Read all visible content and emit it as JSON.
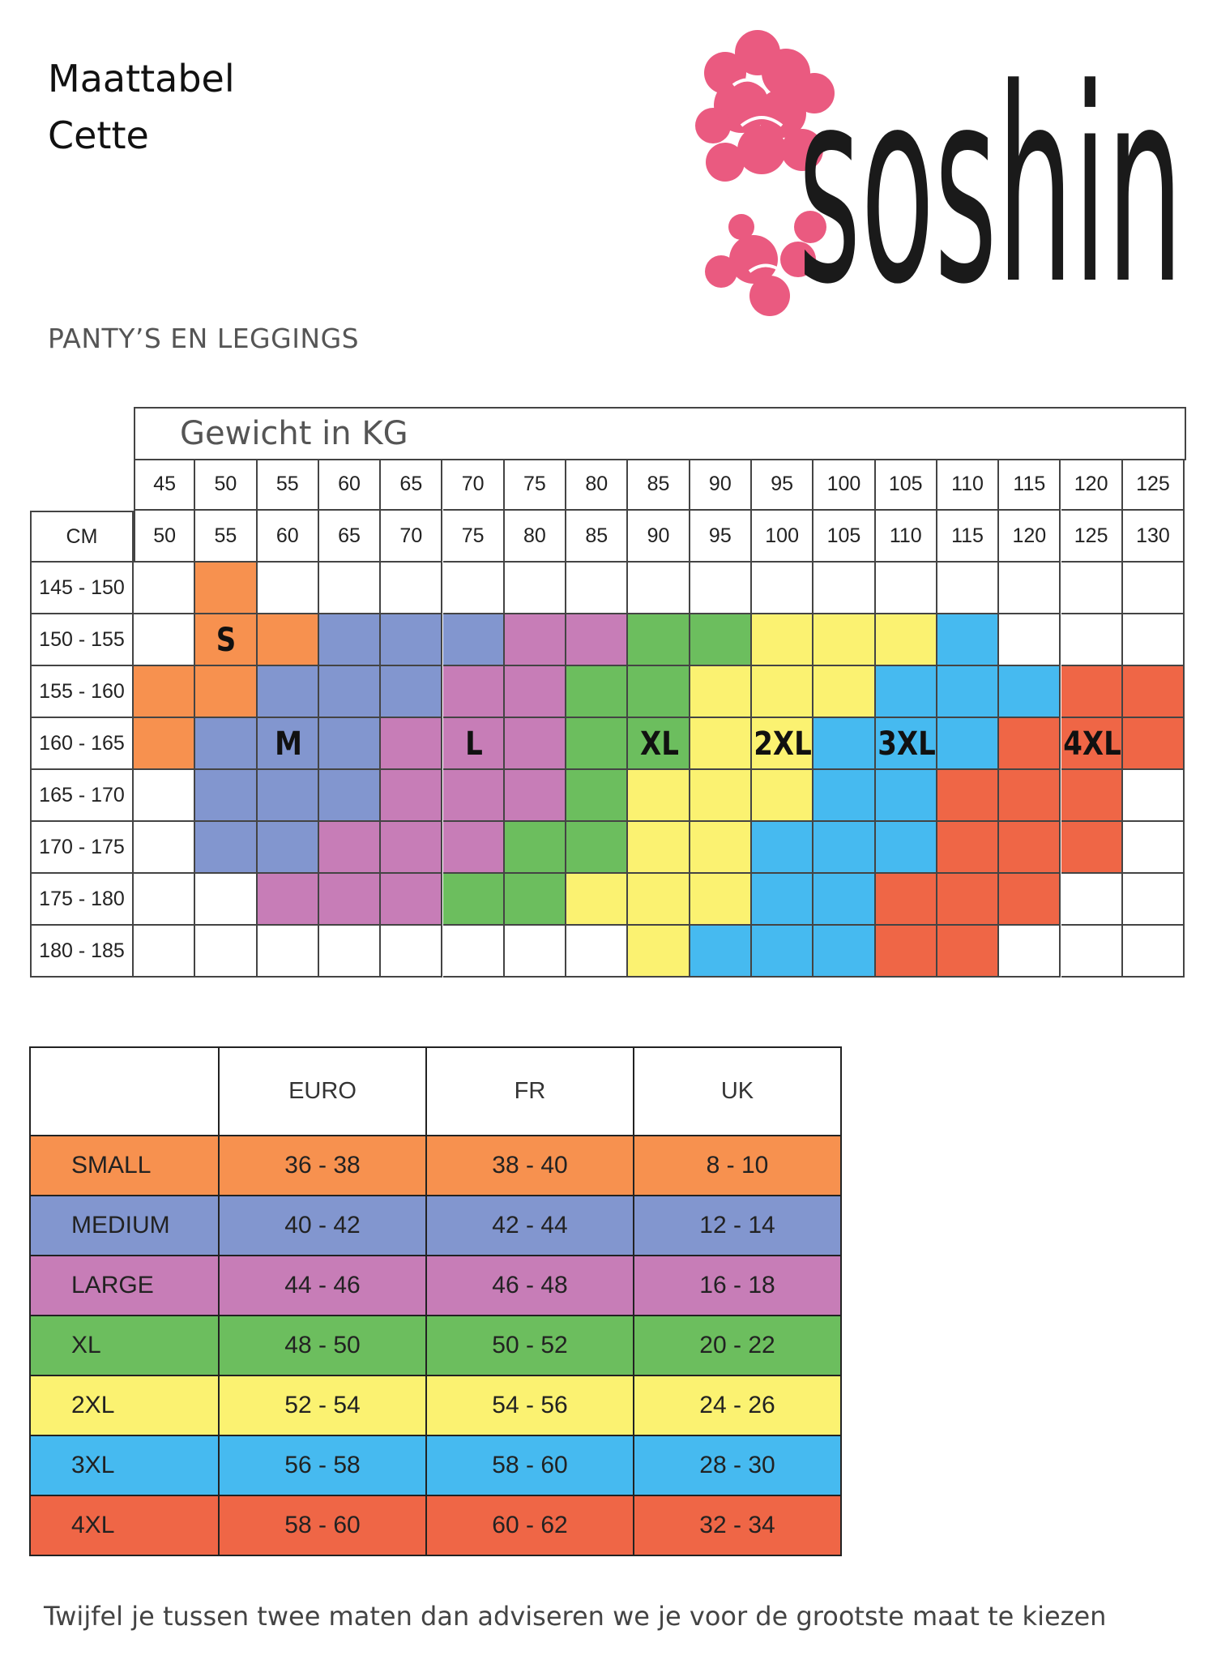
{
  "header": {
    "title_line1": "Maattabel",
    "title_line2": "Cette",
    "brand": "soshin",
    "section": "PANTY’S EN LEGGINGS"
  },
  "grid": {
    "weight_title": "Gewicht in KG",
    "cm_label": "CM",
    "weight_from": [
      "45",
      "50",
      "55",
      "60",
      "65",
      "70",
      "75",
      "80",
      "85",
      "90",
      "95",
      "100",
      "105",
      "110",
      "115",
      "120",
      "125"
    ],
    "weight_to": [
      "50",
      "55",
      "60",
      "65",
      "70",
      "75",
      "80",
      "85",
      "90",
      "95",
      "100",
      "105",
      "110",
      "115",
      "120",
      "125",
      "130"
    ],
    "heights": [
      "145 - 150",
      "150 - 155",
      "155 - 160",
      "160 - 165",
      "165 - 170",
      "170 - 175",
      "175 - 180",
      "180 - 185"
    ],
    "cells": [
      [
        "",
        "S",
        "",
        "",
        "",
        "",
        "",
        "",
        "",
        "",
        "",
        "",
        "",
        "",
        "",
        "",
        ""
      ],
      [
        "",
        "S",
        "S",
        "M",
        "M",
        "M",
        "L",
        "L",
        "XL",
        "XL",
        "2XL",
        "2XL",
        "2XL",
        "3XL",
        "",
        "",
        ""
      ],
      [
        "S",
        "S",
        "M",
        "M",
        "M",
        "L",
        "L",
        "XL",
        "XL",
        "2XL",
        "2XL",
        "2XL",
        "3XL",
        "3XL",
        "3XL",
        "4XL",
        "4XL"
      ],
      [
        "S",
        "M",
        "M",
        "M",
        "L",
        "L",
        "L",
        "XL",
        "XL",
        "2XL",
        "2XL",
        "3XL",
        "3XL",
        "3XL",
        "4XL",
        "4XL",
        "4XL"
      ],
      [
        "",
        "M",
        "M",
        "M",
        "L",
        "L",
        "L",
        "XL",
        "2XL",
        "2XL",
        "2XL",
        "3XL",
        "3XL",
        "4XL",
        "4XL",
        "4XL",
        ""
      ],
      [
        "",
        "M",
        "M",
        "L",
        "L",
        "L",
        "XL",
        "XL",
        "2XL",
        "2XL",
        "3XL",
        "3XL",
        "3XL",
        "4XL",
        "4XL",
        "4XL",
        ""
      ],
      [
        "",
        "",
        "L",
        "L",
        "L",
        "XL",
        "XL",
        "2XL",
        "2XL",
        "2XL",
        "3XL",
        "3XL",
        "4XL",
        "4XL",
        "4XL",
        "",
        ""
      ],
      [
        "",
        "",
        "",
        "",
        "",
        "",
        "",
        "",
        "2XL",
        "3XL",
        "3XL",
        "3XL",
        "4XL",
        "4XL",
        "",
        "",
        ""
      ]
    ],
    "labels": [
      {
        "text": "S",
        "row": 1,
        "col": 1
      },
      {
        "text": "M",
        "row": 3,
        "col": 2
      },
      {
        "text": "L",
        "row": 3,
        "col": 5
      },
      {
        "text": "XL",
        "row": 3,
        "col": 8
      },
      {
        "text": "2XL",
        "row": 3,
        "col": 10
      },
      {
        "text": "3XL",
        "row": 3,
        "col": 12
      },
      {
        "text": "4XL",
        "row": 3,
        "col": 15
      }
    ]
  },
  "colors": {
    "S": "#f7914f",
    "M": "#8296cf",
    "L": "#c77db7",
    "XL": "#6cbe5e",
    "2XL": "#fbf271",
    "3XL": "#46baf0",
    "4XL": "#ef6646",
    "rose": "#ea5a80",
    "brand_text": "#1a1a1a"
  },
  "conversion": {
    "headers": [
      "EURO",
      "FR",
      "UK"
    ],
    "rows": [
      {
        "key": "S",
        "name": "SMALL",
        "euro": "36 - 38",
        "fr": "38 - 40",
        "uk": "8 - 10"
      },
      {
        "key": "M",
        "name": "MEDIUM",
        "euro": "40 - 42",
        "fr": "42 - 44",
        "uk": "12 - 14"
      },
      {
        "key": "L",
        "name": "LARGE",
        "euro": "44 - 46",
        "fr": "46 - 48",
        "uk": "16 - 18"
      },
      {
        "key": "XL",
        "name": "XL",
        "euro": "48 - 50",
        "fr": "50 - 52",
        "uk": "20 - 22"
      },
      {
        "key": "2XL",
        "name": "2XL",
        "euro": "52 - 54",
        "fr": "54 - 56",
        "uk": "24 - 26"
      },
      {
        "key": "3XL",
        "name": "3XL",
        "euro": "56 - 58",
        "fr": "58 - 60",
        "uk": "28 - 30"
      },
      {
        "key": "4XL",
        "name": "4XL",
        "euro": "58 - 60",
        "fr": "60 - 62",
        "uk": "32 - 34"
      }
    ]
  },
  "footer": {
    "note": "Twijfel je tussen twee maten dan adviseren we je voor de grootste maat te kiezen"
  }
}
